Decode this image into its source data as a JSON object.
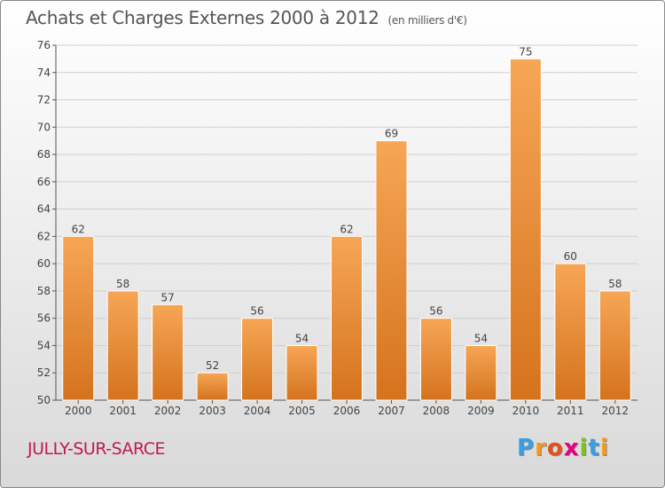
{
  "title": "Achats et Charges Externes 2000 à 2012",
  "unit": "(en milliers d'€)",
  "town": "JULLY-SUR-SARCE",
  "logo": {
    "letters": [
      "P",
      "r",
      "o",
      "x",
      "i",
      "t",
      "i"
    ],
    "colors": [
      "#3a9ee0",
      "#f39a1e",
      "#e94e1b",
      "#e5007e",
      "#7fbf2a",
      "#3a9ee0",
      "#f39a1e"
    ]
  },
  "colors": {
    "bar_light": "#f6a656",
    "bar_dark": "#d5731d",
    "town": "#c0185a"
  },
  "chart_data": {
    "type": "bar",
    "categories": [
      "2000",
      "2001",
      "2002",
      "2003",
      "2004",
      "2005",
      "2006",
      "2007",
      "2008",
      "2009",
      "2010",
      "2011",
      "2012"
    ],
    "values": [
      62,
      58,
      57,
      52,
      56,
      54,
      62,
      69,
      56,
      54,
      75,
      60,
      58
    ],
    "ylim": [
      50,
      76
    ],
    "yticks": [
      50,
      52,
      54,
      56,
      58,
      60,
      62,
      64,
      66,
      68,
      70,
      72,
      74,
      76
    ],
    "grid": true
  }
}
